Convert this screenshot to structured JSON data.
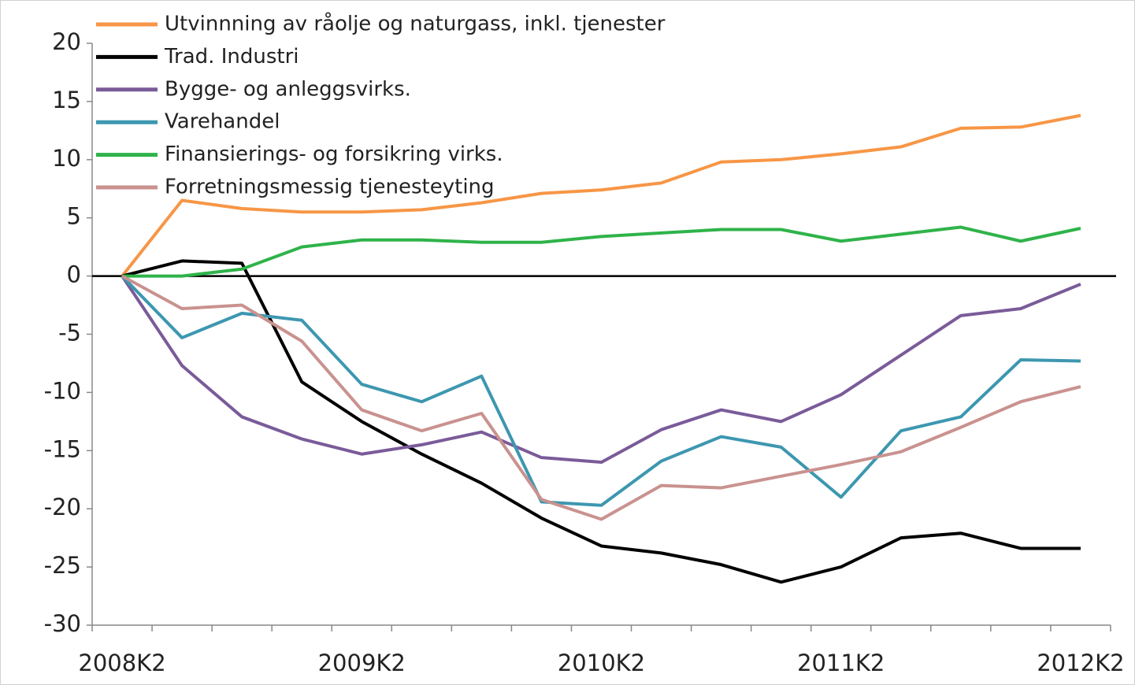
{
  "chart_data": {
    "type": "line",
    "categories": [
      "2008K2",
      null,
      null,
      null,
      "2009K2",
      null,
      null,
      null,
      "2010K2",
      null,
      null,
      null,
      "2011K2",
      null,
      null,
      null,
      "2012K2"
    ],
    "series": [
      {
        "name": "Utvinnning av råolje og naturgass, inkl. tjenester",
        "color": "#f79646",
        "values": [
          0,
          6.5,
          5.8,
          5.5,
          5.5,
          5.7,
          6.3,
          7.1,
          7.4,
          8.0,
          9.8,
          10.0,
          10.5,
          11.1,
          12.7,
          12.8,
          13.8
        ]
      },
      {
        "name": "Trad. Industri",
        "color": "#000000",
        "values": [
          0,
          1.3,
          1.1,
          -9.1,
          -12.5,
          -15.3,
          -17.8,
          -20.8,
          -23.2,
          -23.8,
          -24.8,
          -26.3,
          -25.0,
          -22.5,
          -22.1,
          -23.4,
          -23.4
        ]
      },
      {
        "name": "Bygge- og anleggsvirks.",
        "color": "#7a5b99",
        "values": [
          0,
          -7.7,
          -12.1,
          -14.0,
          -15.3,
          -14.5,
          -13.4,
          -15.6,
          -16.0,
          -13.2,
          -11.5,
          -12.5,
          -10.2,
          -6.8,
          -3.4,
          -2.8,
          -0.7
        ]
      },
      {
        "name": "Varehandel",
        "color": "#3d97b0",
        "values": [
          0,
          -5.3,
          -3.2,
          -3.8,
          -9.3,
          -10.8,
          -8.6,
          -19.4,
          -19.7,
          -15.9,
          -13.8,
          -14.7,
          -19.0,
          -13.3,
          -12.1,
          -7.2,
          -7.3
        ]
      },
      {
        "name": "Finansierings- og forsikring virks.",
        "color": "#2fb34a",
        "values": [
          0,
          0,
          0.6,
          2.5,
          3.1,
          3.1,
          2.9,
          2.9,
          3.4,
          3.7,
          4.0,
          4.0,
          3.0,
          3.6,
          4.2,
          3.0,
          4.1
        ]
      },
      {
        "name": "Forretningsmessig tjenesteyting",
        "color": "#c9928f",
        "values": [
          0,
          -2.8,
          -2.5,
          -5.6,
          -11.5,
          -13.3,
          -11.8,
          -19.2,
          -20.9,
          -18.0,
          -18.2,
          -17.2,
          -16.2,
          -15.1,
          -13.0,
          -10.8,
          -9.5
        ]
      }
    ],
    "ylim": [
      -30,
      20
    ],
    "yticks": [
      -30,
      -25,
      -20,
      -15,
      -10,
      -5,
      0,
      5,
      10,
      15,
      20
    ],
    "legend": "upper left"
  }
}
